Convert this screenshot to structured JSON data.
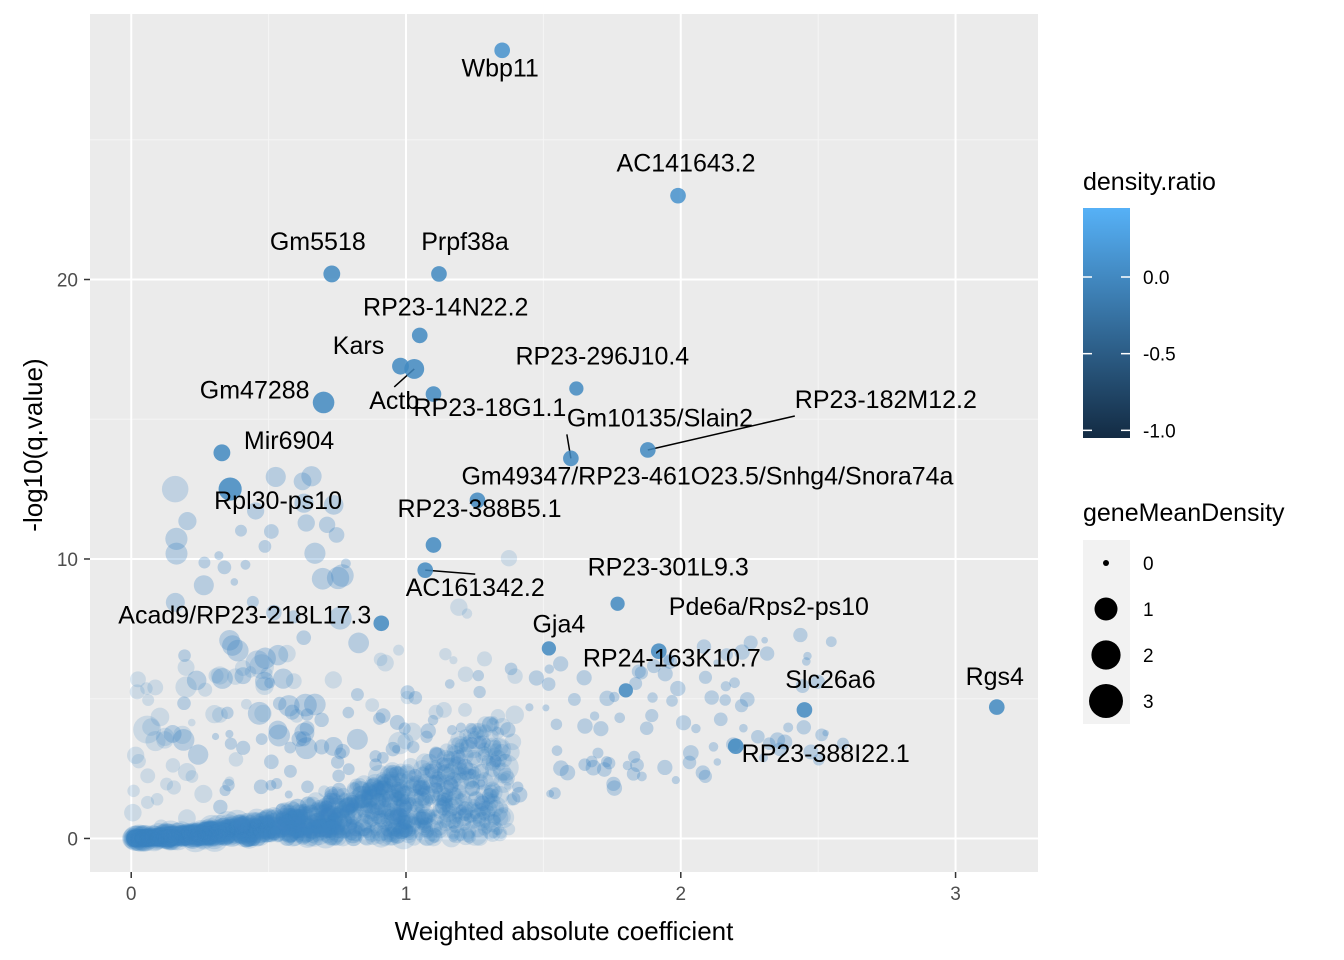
{
  "chart_data": {
    "type": "scatter",
    "xlabel": "Weighted absolute coefficient",
    "ylabel": "-log10(q.value)",
    "xlim": [
      -0.15,
      3.3
    ],
    "ylim": [
      -1.2,
      29.5
    ],
    "x_ticks": [
      0,
      1,
      2,
      3
    ],
    "y_ticks": [
      0,
      10,
      20
    ],
    "grid": true,
    "panel_background": "#ebebeb",
    "point_color": "#3f85c4",
    "labeled_points": [
      {
        "label": "Wbp11",
        "x": 1.35,
        "y": 28.2,
        "size": 0.4,
        "density_ratio": 0.1
      },
      {
        "label": "AC141643.2",
        "x": 1.99,
        "y": 23.0,
        "size": 0.4,
        "density_ratio": 0.1
      },
      {
        "label": "Gm5518",
        "x": 0.73,
        "y": 20.2,
        "size": 0.5,
        "density_ratio": 0.0
      },
      {
        "label": "Prpf38a",
        "x": 1.12,
        "y": 20.2,
        "size": 0.4,
        "density_ratio": 0.0
      },
      {
        "label": "RP23-14N22.2",
        "x": 1.05,
        "y": 18.0,
        "size": 0.4,
        "density_ratio": 0.0
      },
      {
        "label": "Kars",
        "x": 0.98,
        "y": 16.9,
        "size": 0.5,
        "density_ratio": 0.0
      },
      {
        "label": "Actb",
        "x": 1.03,
        "y": 16.8,
        "size": 0.8,
        "density_ratio": 0.0
      },
      {
        "label": "RP23-296J10.4",
        "x": 1.62,
        "y": 16.1,
        "size": 0.3,
        "density_ratio": 0.0
      },
      {
        "label": "RP23-18G1.1",
        "x": 1.1,
        "y": 15.9,
        "size": 0.4,
        "density_ratio": 0.0
      },
      {
        "label": "Gm47288",
        "x": 0.7,
        "y": 15.6,
        "size": 1.0,
        "density_ratio": 0.0
      },
      {
        "label": "RP23-182M12.2",
        "x": 1.88,
        "y": 13.9,
        "size": 0.4,
        "density_ratio": 0.0
      },
      {
        "label": "Gm10135/Slain2",
        "x": 1.6,
        "y": 13.6,
        "size": 0.4,
        "density_ratio": 0.0
      },
      {
        "label": "Mir6904",
        "x": 0.33,
        "y": 13.8,
        "size": 0.5,
        "density_ratio": 0.0
      },
      {
        "label": "Gm49347/RP23-461O23.5/Snhg4/Snora74a",
        "x": 1.26,
        "y": 12.1,
        "size": 0.4,
        "density_ratio": 0.0
      },
      {
        "label": "Rpl30-ps10",
        "x": 0.36,
        "y": 12.5,
        "size": 1.2,
        "density_ratio": 0.0
      },
      {
        "label": "RP23-388B5.1",
        "x": 1.1,
        "y": 10.5,
        "size": 0.4,
        "density_ratio": 0.0
      },
      {
        "label": "AC161342.2",
        "x": 1.07,
        "y": 9.6,
        "size": 0.4,
        "density_ratio": 0.0
      },
      {
        "label": "Acad9/RP23-218L17.3",
        "x": 0.91,
        "y": 7.7,
        "size": 0.4,
        "density_ratio": 0.0
      },
      {
        "label": "RP23-301L9.3",
        "x": 1.77,
        "y": 8.4,
        "size": 0.3,
        "density_ratio": 0.0
      },
      {
        "label": "Gja4",
        "x": 1.52,
        "y": 6.8,
        "size": 0.3,
        "density_ratio": 0.0
      },
      {
        "label": "Pde6a/Rps2-ps10",
        "x": 1.92,
        "y": 6.7,
        "size": 0.4,
        "density_ratio": 0.0
      },
      {
        "label": "RP24-163K10.7",
        "x": 1.8,
        "y": 5.3,
        "size": 0.3,
        "density_ratio": 0.0
      },
      {
        "label": "Slc26a6",
        "x": 2.45,
        "y": 4.6,
        "size": 0.4,
        "density_ratio": 0.0
      },
      {
        "label": "Rgs4",
        "x": 3.15,
        "y": 4.7,
        "size": 0.4,
        "density_ratio": 0.0
      },
      {
        "label": "RP23-388I22.1",
        "x": 2.2,
        "y": 3.3,
        "size": 0.4,
        "density_ratio": 0.0
      }
    ],
    "legend_color": {
      "title": "density.ratio",
      "ticks": [
        {
          "label": "0.0",
          "value": 0.0
        },
        {
          "label": "-0.5",
          "value": -0.5
        },
        {
          "label": "-1.0",
          "value": -1.0
        }
      ],
      "range": [
        -1.05,
        0.45
      ],
      "low_color": "#132b43",
      "high_color": "#56b1f7"
    },
    "legend_size": {
      "title": "geneMeanDensity",
      "items": [
        {
          "label": "0",
          "value": 0
        },
        {
          "label": "1",
          "value": 1
        },
        {
          "label": "2",
          "value": 2
        },
        {
          "label": "3",
          "value": 3
        }
      ]
    }
  }
}
